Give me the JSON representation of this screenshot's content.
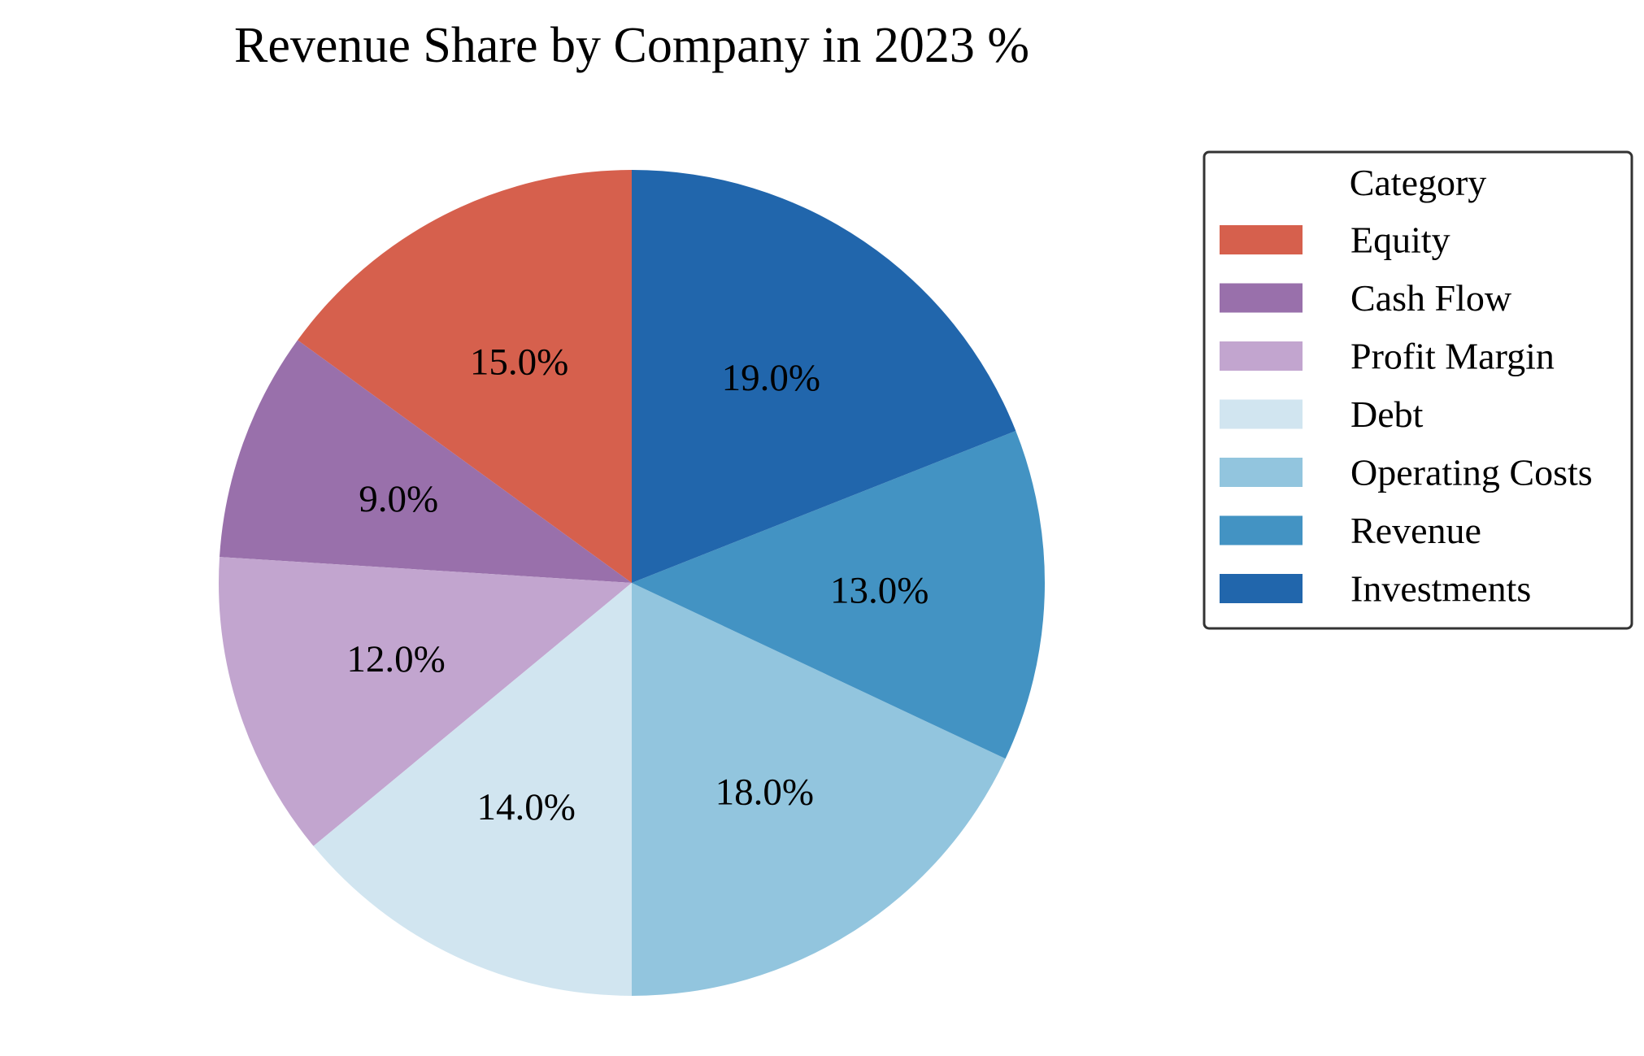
{
  "chart_data": {
    "type": "pie",
    "title": "Revenue Share by Company in 2023 %",
    "legend": {
      "title": "Category",
      "placement": "right"
    },
    "slices": [
      {
        "label": "Equity",
        "value": 15.0,
        "display": "15.0%",
        "color": "#d6604d"
      },
      {
        "label": "Cash Flow",
        "value": 9.0,
        "display": "9.0%",
        "color": "#9970ab"
      },
      {
        "label": "Profit Margin",
        "value": 12.0,
        "display": "12.0%",
        "color": "#c2a5cf"
      },
      {
        "label": "Debt",
        "value": 14.0,
        "display": "14.0%",
        "color": "#d1e5f0"
      },
      {
        "label": "Operating Costs",
        "value": 18.0,
        "display": "18.0%",
        "color": "#92c5de"
      },
      {
        "label": "Revenue",
        "value": 13.0,
        "display": "13.0%",
        "color": "#4393c3"
      },
      {
        "label": "Investments",
        "value": 19.0,
        "display": "19.0%",
        "color": "#2166ac"
      }
    ]
  }
}
